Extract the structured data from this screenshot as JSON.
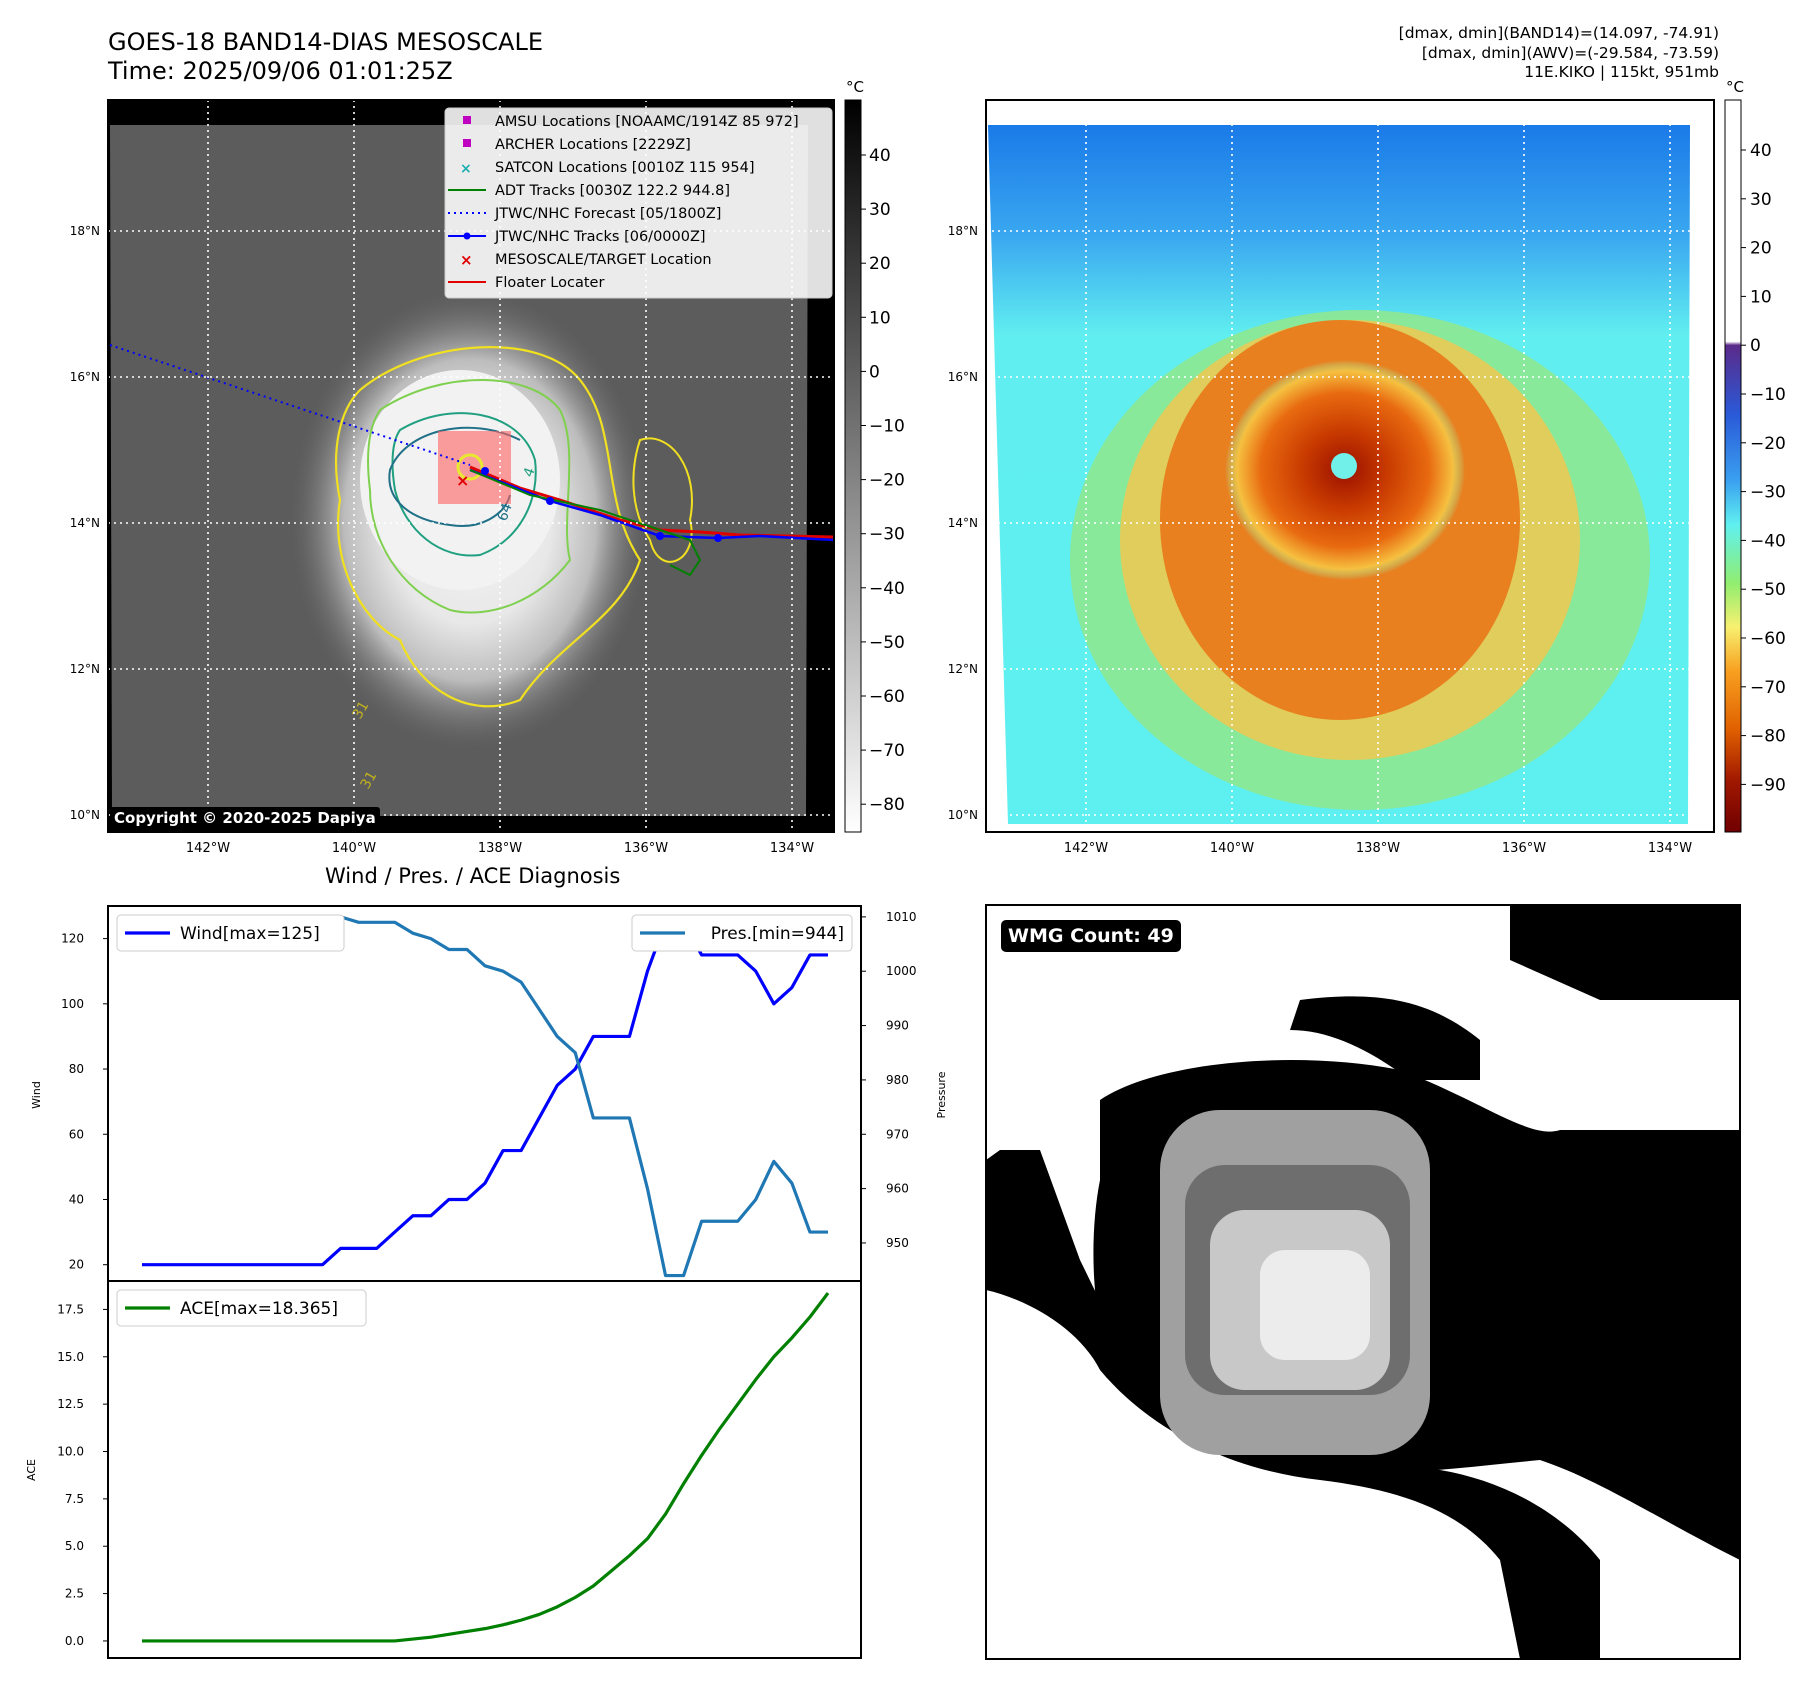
{
  "header": {
    "title_line1": "GOES-18 BAND14-DIAS MESOSCALE",
    "title_line2": "Time: 2025/09/06 01:01:25Z",
    "info_line1": "[dmax, dmin](BAND14)=(14.097, -74.91)",
    "info_line2": "[dmax, dmin](AWV)=(-29.584, -73.59)",
    "info_line3": "11E.KIKO | 115kt, 951mb"
  },
  "map_axes": {
    "lat_labels": [
      "18°N",
      "16°N",
      "14°N",
      "12°N",
      "10°N"
    ],
    "lon_labels": [
      "142°W",
      "140°W",
      "138°W",
      "136°W",
      "134°W"
    ]
  },
  "ir_panel": {
    "colorbar_unit": "°C",
    "colorbar_ticks": [
      "40",
      "30",
      "20",
      "10",
      "0",
      "−10",
      "−20",
      "−30",
      "−40",
      "−50",
      "−60",
      "−70",
      "−80"
    ],
    "copyright": "Copyright © 2020-2025 Dapiya",
    "contour_labels": [
      "64",
      "4",
      "31",
      "31"
    ],
    "legend": [
      {
        "label": "AMSU Locations [NOAAMC/1914Z 85 972]",
        "color": "#c000c0",
        "symbol": "square"
      },
      {
        "label": "ARCHER Locations [2229Z]",
        "color": "#c000c0",
        "symbol": "square"
      },
      {
        "label": "SATCON Locations [0010Z 115 954]",
        "color": "#20b0b0",
        "symbol": "x"
      },
      {
        "label": "ADT Tracks [0030Z 122.2 944.8]",
        "color": "#008000",
        "symbol": "line"
      },
      {
        "label": "JTWC/NHC Forecast [05/1800Z]",
        "color": "#0000ff",
        "symbol": "dotted"
      },
      {
        "label": "JTWC/NHC Tracks [06/0000Z]",
        "color": "#0000ff",
        "symbol": "line-dot"
      },
      {
        "label": "MESOSCALE/TARGET Location",
        "color": "#e00000",
        "symbol": "x"
      },
      {
        "label": "Floater Locater",
        "color": "#e00000",
        "symbol": "line"
      }
    ]
  },
  "awv_panel": {
    "colorbar_unit": "°C",
    "colorbar_ticks": [
      "40",
      "30",
      "20",
      "10",
      "0",
      "−10",
      "−20",
      "−30",
      "−40",
      "−50",
      "−60",
      "−70",
      "−80",
      "−90"
    ]
  },
  "wmg_panel": {
    "count_label": "WMG Count: 49"
  },
  "diagnosis": {
    "title": "Wind / Pres. / ACE Diagnosis"
  },
  "chart_data": [
    {
      "type": "line",
      "title": "Wind / Pres. / ACE Diagnosis",
      "ylabel": "Wind",
      "ylabel_right": "Pressure",
      "ylim": [
        15,
        130
      ],
      "ylim_right": [
        943,
        1012
      ],
      "yticks": [
        20,
        40,
        60,
        80,
        100,
        120
      ],
      "yticks_right": [
        950,
        960,
        970,
        980,
        990,
        1000,
        1010
      ],
      "x": [
        0,
        1,
        2,
        3,
        4,
        5,
        6,
        7,
        8,
        9,
        10,
        11,
        12,
        13,
        14,
        15,
        16,
        17,
        18,
        19,
        20,
        21,
        22,
        23,
        24,
        25,
        26,
        27,
        28,
        29,
        30,
        31,
        32,
        33,
        34,
        35,
        36,
        37,
        38
      ],
      "series": [
        {
          "name": "Wind[max=125]",
          "axis": "left",
          "color": "#0000ff",
          "values": [
            20,
            20,
            20,
            20,
            20,
            20,
            20,
            20,
            20,
            20,
            20,
            25,
            25,
            25,
            30,
            35,
            35,
            40,
            40,
            45,
            55,
            55,
            65,
            75,
            80,
            90,
            90,
            90,
            110,
            125,
            125,
            115,
            115,
            115,
            110,
            100,
            105,
            115,
            115
          ]
        },
        {
          "name": "Pres.[min=944]",
          "axis": "right",
          "color": "#1f77b4",
          "values": [
            1010,
            1010,
            1010,
            1010,
            1010,
            1010,
            1010,
            1010,
            1010,
            1010,
            1010,
            1010,
            1009,
            1009,
            1009,
            1007,
            1006,
            1004,
            1004,
            1001,
            1000,
            998,
            993,
            988,
            985,
            973,
            973,
            973,
            960,
            944,
            944,
            954,
            954,
            954,
            958,
            965,
            961,
            952,
            952
          ]
        }
      ]
    },
    {
      "type": "line",
      "ylabel": "ACE",
      "ylim": [
        -0.9,
        19.0
      ],
      "yticks": [
        0.0,
        2.5,
        5.0,
        7.5,
        10.0,
        12.5,
        15.0,
        17.5
      ],
      "x": [
        0,
        1,
        2,
        3,
        4,
        5,
        6,
        7,
        8,
        9,
        10,
        11,
        12,
        13,
        14,
        15,
        16,
        17,
        18,
        19,
        20,
        21,
        22,
        23,
        24,
        25,
        26,
        27,
        28,
        29,
        30,
        31,
        32,
        33,
        34,
        35,
        36,
        37,
        38
      ],
      "series": [
        {
          "name": "ACE[max=18.365]",
          "color": "#008000",
          "values": [
            0,
            0,
            0,
            0,
            0,
            0,
            0,
            0,
            0,
            0,
            0,
            0,
            0,
            0,
            0,
            0.1,
            0.2,
            0.35,
            0.5,
            0.65,
            0.85,
            1.1,
            1.4,
            1.8,
            2.3,
            2.9,
            3.7,
            4.5,
            5.4,
            6.7,
            8.3,
            9.8,
            11.2,
            12.5,
            13.8,
            15.0,
            16.0,
            17.1,
            18.365
          ]
        }
      ]
    }
  ]
}
